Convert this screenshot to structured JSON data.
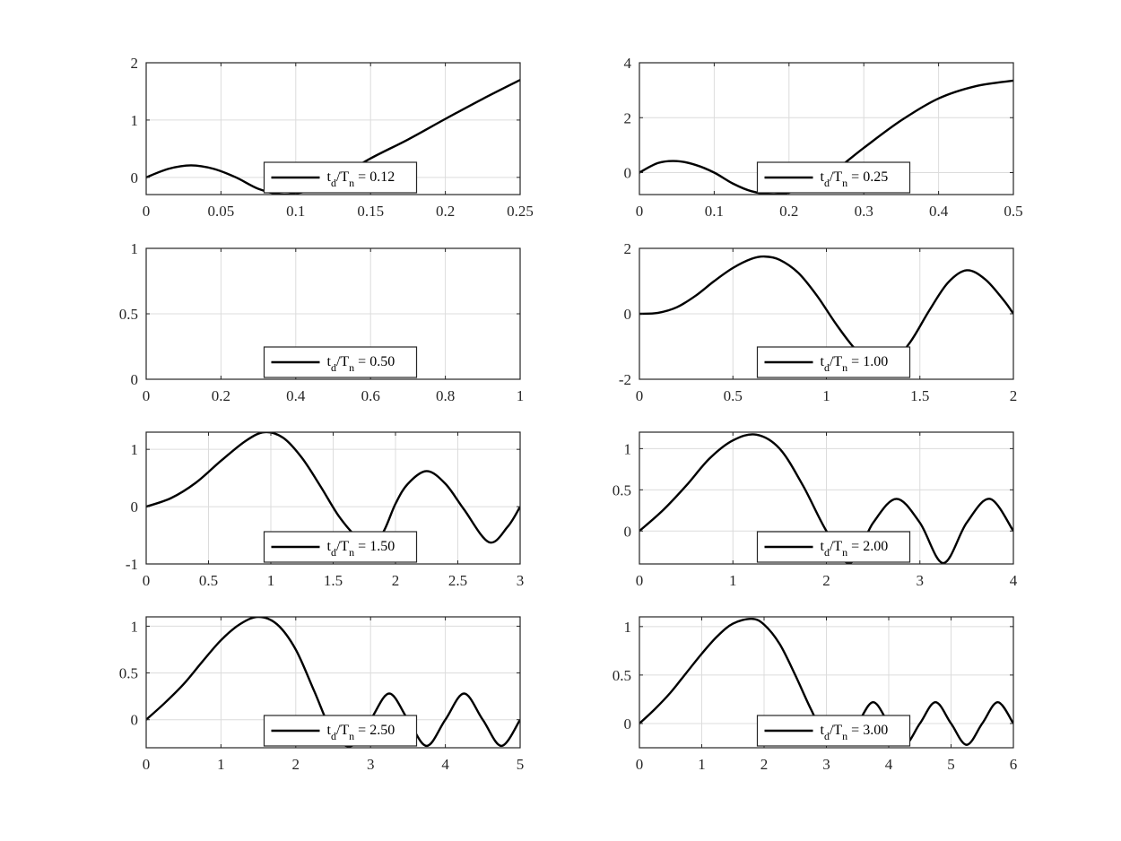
{
  "figure": {
    "background": "#ffffff",
    "line_color": "#000000",
    "grid_color": "#dcdcdc",
    "axes_color": "#262626"
  },
  "chart_data": [
    {
      "type": "line",
      "title": "",
      "xlabel": "",
      "ylabel": "",
      "xlim": [
        0,
        0.25
      ],
      "ylim": [
        -0.3,
        2
      ],
      "xticks": [
        0,
        0.05,
        0.1,
        0.15,
        0.2,
        0.25
      ],
      "xtick_labels": [
        "0",
        "0.05",
        "0.1",
        "0.15",
        "0.2",
        "0.25"
      ],
      "yticks": [
        0,
        1,
        2
      ],
      "ytick_labels": [
        "0",
        "1",
        "2"
      ],
      "grid": true,
      "legend": {
        "position": "bottom-center",
        "base": "t",
        "base_sub": "d",
        "mid": "/T",
        "mid_sub": "n",
        "value": " = 0.12"
      },
      "series": [
        {
          "x": [
            0,
            0.015,
            0.03,
            0.045,
            0.06,
            0.075,
            0.09,
            0.1,
            0.11,
            0.125,
            0.15,
            0.175,
            0.2,
            0.225,
            0.25
          ],
          "y": [
            0,
            0.15,
            0.21,
            0.15,
            0.0,
            -0.2,
            -0.3,
            -0.28,
            -0.22,
            -0.05,
            0.33,
            0.66,
            1.02,
            1.37,
            1.7
          ]
        }
      ]
    },
    {
      "type": "line",
      "title": "",
      "xlabel": "",
      "ylabel": "",
      "xlim": [
        0,
        0.5
      ],
      "ylim": [
        -0.8,
        4
      ],
      "xticks": [
        0,
        0.1,
        0.2,
        0.3,
        0.4,
        0.5
      ],
      "xtick_labels": [
        "0",
        "0.1",
        "0.2",
        "0.3",
        "0.4",
        "0.5"
      ],
      "yticks": [
        0,
        2,
        4
      ],
      "ytick_labels": [
        "0",
        "2",
        "4"
      ],
      "grid": true,
      "legend": {
        "position": "bottom-center",
        "base": "t",
        "base_sub": "d",
        "mid": "/T",
        "mid_sub": "n",
        "value": " = 0.25"
      },
      "series": [
        {
          "x": [
            0,
            0.025,
            0.05,
            0.075,
            0.1,
            0.125,
            0.15,
            0.18,
            0.21,
            0.25,
            0.3,
            0.35,
            0.4,
            0.45,
            0.5
          ],
          "y": [
            0,
            0.35,
            0.42,
            0.28,
            0.0,
            -0.4,
            -0.68,
            -0.8,
            -0.65,
            -0.15,
            0.9,
            1.9,
            2.7,
            3.15,
            3.35
          ]
        }
      ]
    },
    {
      "type": "line",
      "title": "",
      "xlabel": "",
      "ylabel": "",
      "xlim": [
        0,
        1
      ],
      "ylim": [
        0,
        1
      ],
      "xticks": [
        0,
        0.2,
        0.4,
        0.6,
        0.8,
        1
      ],
      "xtick_labels": [
        "0",
        "0.2",
        "0.4",
        "0.6",
        "0.8",
        "1"
      ],
      "yticks": [
        0,
        0.5,
        1
      ],
      "ytick_labels": [
        "0",
        "0.5",
        "1"
      ],
      "grid": true,
      "legend": {
        "position": "bottom-center",
        "base": "t",
        "base_sub": "d",
        "mid": "/T",
        "mid_sub": "n",
        "value": " = 0.50"
      },
      "series": []
    },
    {
      "type": "line",
      "title": "",
      "xlabel": "",
      "ylabel": "",
      "xlim": [
        0,
        2
      ],
      "ylim": [
        -2,
        2
      ],
      "xticks": [
        0,
        0.5,
        1,
        1.5,
        2
      ],
      "xtick_labels": [
        "0",
        "0.5",
        "1",
        "1.5",
        "2"
      ],
      "yticks": [
        -2,
        0,
        2
      ],
      "ytick_labels": [
        "-2",
        "0",
        "2"
      ],
      "grid": true,
      "legend": {
        "position": "bottom-center",
        "base": "t",
        "base_sub": "d",
        "mid": "/T",
        "mid_sub": "n",
        "value": " = 1.00"
      },
      "series": [
        {
          "x": [
            0,
            0.1,
            0.2,
            0.3,
            0.4,
            0.5,
            0.6,
            0.67,
            0.75,
            0.85,
            0.95,
            1.05,
            1.15,
            1.25,
            1.35,
            1.45,
            1.55,
            1.65,
            1.75,
            1.85,
            1.95,
            2.0
          ],
          "y": [
            0,
            0.03,
            0.2,
            0.55,
            1.0,
            1.4,
            1.68,
            1.75,
            1.65,
            1.25,
            0.55,
            -0.3,
            -1.05,
            -1.55,
            -1.5,
            -0.85,
            0.1,
            0.95,
            1.33,
            1.05,
            0.4,
            0.0
          ]
        }
      ]
    },
    {
      "type": "line",
      "title": "",
      "xlabel": "",
      "ylabel": "",
      "xlim": [
        0,
        3
      ],
      "ylim": [
        -1,
        1.3
      ],
      "xticks": [
        0,
        0.5,
        1,
        1.5,
        2,
        2.5,
        3
      ],
      "xtick_labels": [
        "0",
        "0.5",
        "1",
        "1.5",
        "2",
        "2.5",
        "3"
      ],
      "yticks": [
        -1,
        0,
        1
      ],
      "ytick_labels": [
        "-1",
        "0",
        "1"
      ],
      "grid": true,
      "legend": {
        "position": "bottom-center",
        "base": "t",
        "base_sub": "d",
        "mid": "/T",
        "mid_sub": "n",
        "value": " = 1.50"
      },
      "series": [
        {
          "x": [
            0,
            0.2,
            0.4,
            0.6,
            0.8,
            0.95,
            1.1,
            1.25,
            1.4,
            1.55,
            1.7,
            1.8,
            1.9,
            2.0,
            2.1,
            2.25,
            2.4,
            2.55,
            2.75,
            2.9,
            3.0
          ],
          "y": [
            0,
            0.15,
            0.42,
            0.8,
            1.15,
            1.3,
            1.2,
            0.85,
            0.35,
            -0.18,
            -0.55,
            -0.62,
            -0.45,
            0.05,
            0.4,
            0.62,
            0.4,
            -0.05,
            -0.62,
            -0.35,
            0.0
          ]
        }
      ]
    },
    {
      "type": "line",
      "title": "",
      "xlabel": "",
      "ylabel": "",
      "xlim": [
        0,
        4
      ],
      "ylim": [
        -0.4,
        1.2
      ],
      "xticks": [
        0,
        1,
        2,
        3,
        4
      ],
      "xtick_labels": [
        "0",
        "1",
        "2",
        "3",
        "4"
      ],
      "yticks": [
        0,
        0.5,
        1
      ],
      "ytick_labels": [
        "0",
        "0.5",
        "1"
      ],
      "grid": true,
      "legend": {
        "position": "bottom-center",
        "base": "t",
        "base_sub": "d",
        "mid": "/T",
        "mid_sub": "n",
        "value": " = 2.00"
      },
      "series": [
        {
          "x": [
            0,
            0.25,
            0.5,
            0.75,
            1.0,
            1.25,
            1.5,
            1.75,
            2.0,
            2.25,
            2.5,
            2.75,
            3.0,
            3.25,
            3.5,
            3.75,
            4.0
          ],
          "y": [
            0,
            0.25,
            0.55,
            0.88,
            1.1,
            1.17,
            1.0,
            0.55,
            0.0,
            -0.39,
            0.1,
            0.39,
            0.1,
            -0.39,
            0.1,
            0.39,
            0.0
          ]
        }
      ]
    },
    {
      "type": "line",
      "title": "",
      "xlabel": "",
      "ylabel": "",
      "xlim": [
        0,
        5
      ],
      "ylim": [
        -0.3,
        1.1
      ],
      "xticks": [
        0,
        1,
        2,
        3,
        4,
        5
      ],
      "xtick_labels": [
        "0",
        "1",
        "2",
        "3",
        "4",
        "5"
      ],
      "yticks": [
        0,
        0.5,
        1
      ],
      "ytick_labels": [
        "0",
        "0.5",
        "1"
      ],
      "grid": true,
      "legend": {
        "position": "bottom-center",
        "base": "t",
        "base_sub": "d",
        "mid": "/T",
        "mid_sub": "n",
        "value": " = 2.50"
      },
      "series": [
        {
          "x": [
            0,
            0.25,
            0.5,
            0.75,
            1.0,
            1.25,
            1.5,
            1.75,
            2.0,
            2.25,
            2.5,
            2.75,
            3.0,
            3.25,
            3.5,
            3.75,
            4.0,
            4.25,
            4.5,
            4.75,
            5.0
          ],
          "y": [
            0,
            0.18,
            0.38,
            0.62,
            0.85,
            1.02,
            1.1,
            1.02,
            0.75,
            0.3,
            -0.15,
            -0.28,
            0.0,
            0.28,
            0.0,
            -0.28,
            0.0,
            0.28,
            0.0,
            -0.28,
            0.0
          ]
        }
      ]
    },
    {
      "type": "line",
      "title": "",
      "xlabel": "",
      "ylabel": "",
      "xlim": [
        0,
        6
      ],
      "ylim": [
        -0.25,
        1.1
      ],
      "xticks": [
        0,
        1,
        2,
        3,
        4,
        5,
        6
      ],
      "xtick_labels": [
        "0",
        "1",
        "2",
        "3",
        "4",
        "5",
        "6"
      ],
      "yticks": [
        0,
        0.5,
        1
      ],
      "ytick_labels": [
        "0",
        "0.5",
        "1"
      ],
      "grid": true,
      "legend": {
        "position": "bottom-center",
        "base": "t",
        "base_sub": "d",
        "mid": "/T",
        "mid_sub": "n",
        "value": " = 3.00"
      },
      "series": [
        {
          "x": [
            0,
            0.25,
            0.5,
            0.75,
            1.0,
            1.25,
            1.5,
            1.8,
            2.0,
            2.25,
            2.5,
            2.75,
            3.0,
            3.25,
            3.5,
            3.75,
            4.0,
            4.25,
            4.5,
            4.75,
            5.0,
            5.25,
            5.5,
            5.75,
            6.0
          ],
          "y": [
            0,
            0.15,
            0.32,
            0.52,
            0.72,
            0.9,
            1.03,
            1.08,
            1.02,
            0.82,
            0.5,
            0.15,
            -0.15,
            -0.2,
            0.0,
            0.22,
            0.0,
            -0.22,
            0.0,
            0.22,
            0.0,
            -0.22,
            0.0,
            0.22,
            0.0
          ]
        }
      ]
    }
  ]
}
